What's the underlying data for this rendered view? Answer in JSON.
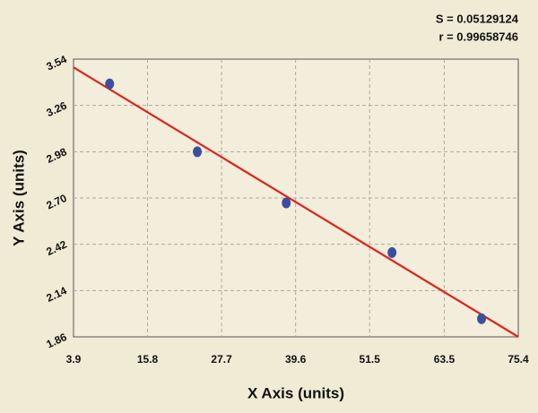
{
  "chart_data": {
    "type": "scatter",
    "x_label": "X Axis (units)",
    "y_label": "Y Axis (units)",
    "annotations": [
      "S = 0.05129124",
      "r = 0.99658746"
    ],
    "x": [
      9.7,
      23.8,
      38.1,
      55.1,
      69.5
    ],
    "values": [
      3.39,
      2.98,
      2.67,
      2.37,
      1.97
    ],
    "color": "#3b4f9e",
    "fit": {
      "x": [
        3.9,
        75.4
      ],
      "y": [
        3.49,
        1.86
      ],
      "color": "#e0221e"
    },
    "xlim": [
      3.9,
      75.4
    ],
    "xticks": [
      3.9,
      15.8,
      27.7,
      39.6,
      51.5,
      63.5,
      75.4
    ],
    "ylim": [
      1.86,
      3.54
    ],
    "yticks": [
      1.86,
      2.14,
      2.42,
      {
        "value": 2.7,
        "label": "2.70"
      },
      2.98,
      3.26,
      3.54
    ],
    "grid": true
  }
}
